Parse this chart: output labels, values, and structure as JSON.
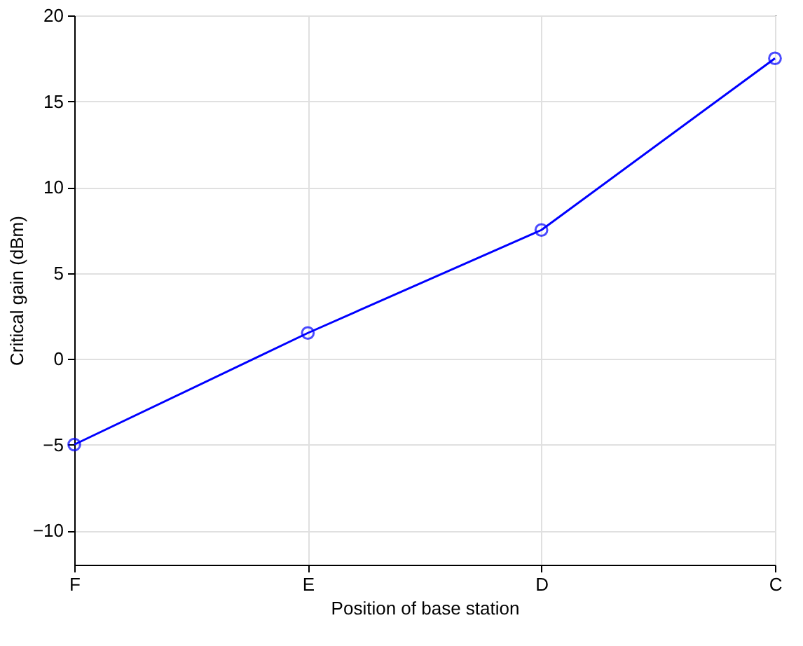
{
  "chart_data": {
    "type": "line",
    "xlabel": "Position of base station",
    "ylabel": "Critical gain (dBm)",
    "categories": [
      "F",
      "E",
      "D",
      "C"
    ],
    "series": [
      {
        "color": "#0000ff",
        "values": [
          -5,
          1.5,
          7.5,
          17.5
        ]
      }
    ],
    "ylim": [
      -12,
      20
    ],
    "yticks": [
      -10,
      -5,
      0,
      5,
      10,
      15,
      20
    ],
    "grid": true,
    "marker": "circle",
    "line_style": "solid"
  }
}
